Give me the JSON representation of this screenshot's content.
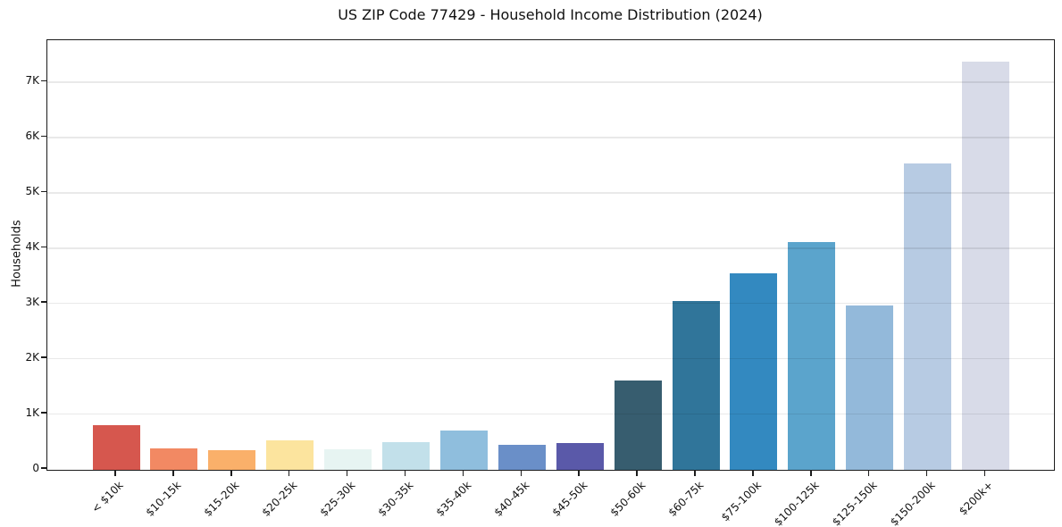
{
  "chart_data": {
    "type": "bar",
    "title": "US ZIP Code 77429 - Household Income Distribution (2024)",
    "xlabel": "",
    "ylabel": "Households",
    "categories": [
      "< $10k",
      "$10-15k",
      "$15-20k",
      "$20-25k",
      "$25-30k",
      "$30-35k",
      "$35-40k",
      "$40-45k",
      "$45-50k",
      "$50-60k",
      "$60-75k",
      "$75-100k",
      "$100-125k",
      "$125-150k",
      "$150-200k",
      "$200k+"
    ],
    "values": [
      800,
      390,
      355,
      530,
      375,
      500,
      705,
      445,
      480,
      1610,
      3050,
      3550,
      4110,
      2970,
      5540,
      7380
    ],
    "bar_colors": [
      "#d6574e",
      "#f28963",
      "#fab06a",
      "#fce49e",
      "#e7f4f2",
      "#c2e0ea",
      "#8fbedd",
      "#6a8fc8",
      "#5a59a9",
      "#375d6f",
      "#30759a",
      "#3389c0",
      "#5ba4cc",
      "#93b9da",
      "#b7cbe3",
      "#d8dbe8"
    ],
    "ylim": [
      0,
      7750
    ],
    "yticks": {
      "values": [
        0,
        1000,
        2000,
        3000,
        4000,
        5000,
        6000,
        7000
      ],
      "labels": [
        "0",
        "1K",
        "2K",
        "3K",
        "4K",
        "5K",
        "6K",
        "7K"
      ]
    },
    "grid": "horizontal, drawn over bars",
    "legend": "none"
  }
}
